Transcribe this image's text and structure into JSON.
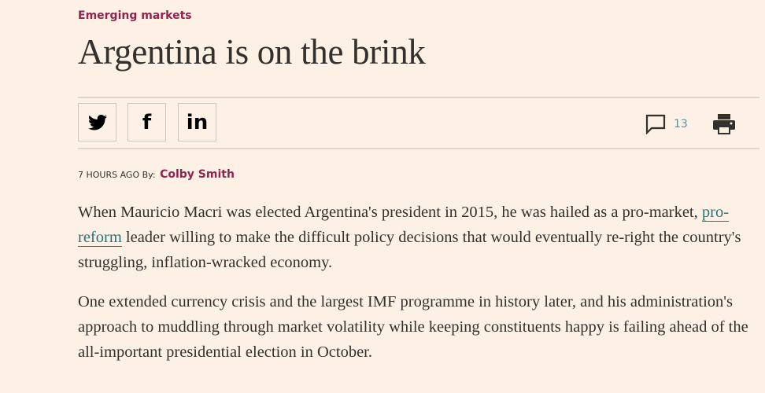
{
  "article": {
    "category": "Emerging markets",
    "title": "Argentina is on the brink",
    "share": {
      "twitter": "twitter-icon",
      "facebook": "facebook-icon",
      "linkedin": "linkedin-icon"
    },
    "comment_count": "13",
    "timestamp": "7 HOURS AGO",
    "by_label": "By:",
    "author": "Colby Smith",
    "p1_before": "When Mauricio Macri was elected Argentina's president in 2015, he was hailed as a pro-market, ",
    "p1_link": "pro-reform",
    "p1_after": " leader willing to make the difficult policy decisions that would eventually re-right the country's struggling, inflation-wracked economy.",
    "p2": "One extended currency crisis and the largest IMF programme in history later, and his administration's approach to muddling through market volatility while keeping constituents happy is failing ahead of the all-important presidential election in October."
  },
  "colors": {
    "background": "#fdf1e5",
    "accent": "#8e2451",
    "link": "#26747a"
  }
}
